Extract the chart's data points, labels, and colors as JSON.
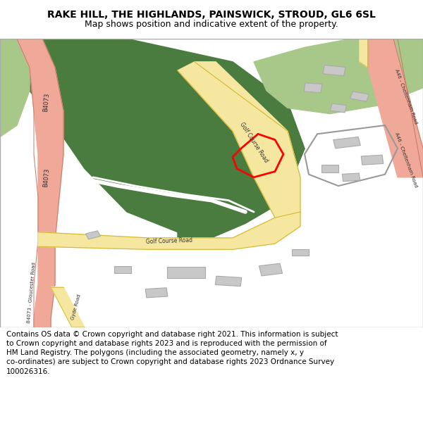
{
  "title": "RAKE HILL, THE HIGHLANDS, PAINSWICK, STROUD, GL6 6SL",
  "subtitle": "Map shows position and indicative extent of the property.",
  "footer_lines": [
    "Contains OS data © Crown copyright and database right 2021. This information is subject",
    "to Crown copyright and database rights 2023 and is reproduced with the permission of",
    "HM Land Registry. The polygons (including the associated geometry, namely x, y",
    "co-ordinates) are subject to Crown copyright and database rights 2023 Ordnance Survey",
    "100026316."
  ],
  "bg_color": "#ffffff",
  "map_bg": "#f2ede8",
  "green_dark": "#4a7c3f",
  "green_light": "#a8c88a",
  "road_yellow_fill": "#f5e6a0",
  "road_yellow_border": "#d4b830",
  "road_pink_fill": "#f0a898",
  "road_pink_border": "#c87868",
  "building_color": "#c8c8c8",
  "building_edge": "#aaaaaa",
  "plot_color": "#ff0000",
  "title_fontsize": 10,
  "subtitle_fontsize": 9,
  "footer_fontsize": 7.5,
  "label_fontsize": 6,
  "label_color": "#333333"
}
